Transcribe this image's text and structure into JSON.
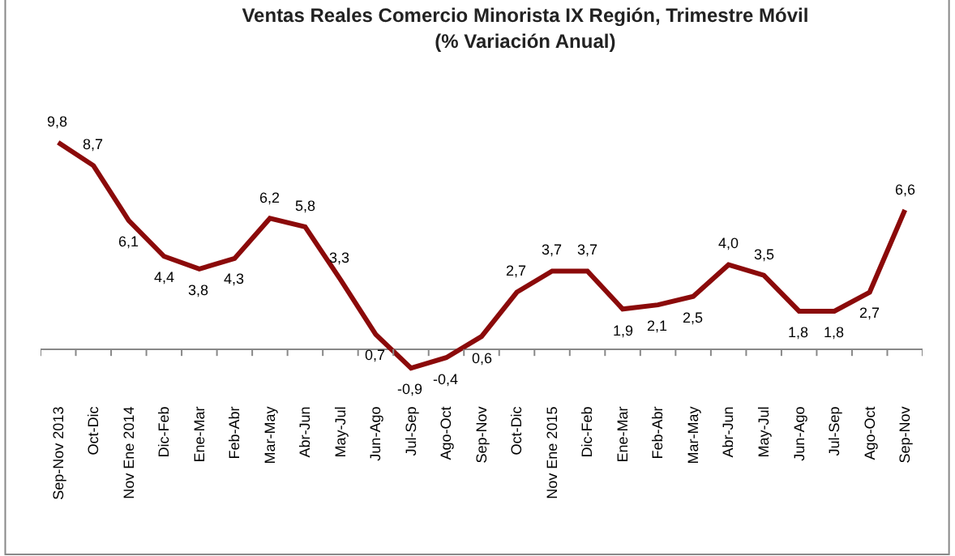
{
  "chart_data": {
    "type": "line",
    "title": "Ventas Reales Comercio Minorista IX Región, Trimestre Móvil",
    "subtitle": "(% Variación Anual)",
    "categories": [
      "Sep-Nov 2013",
      "Oct-Dic",
      "Nov Ene 2014",
      "Dic-Feb",
      "Ene-Mar",
      "Feb-Abr",
      "Mar-May",
      "Abr-Jun",
      "May-Jul",
      "Jun-Ago",
      "Jul-Sep",
      "Ago-Oct",
      "Sep-Nov",
      "Oct-Dic",
      "Nov Ene 2015",
      "Dic-Feb",
      "Ene-Mar",
      "Feb-Abr",
      "Mar-May",
      "Abr-Jun",
      "May-Jul",
      "Jun-Ago",
      "Jul-Sep",
      "Ago-Oct",
      "Sep-Nov"
    ],
    "series": [
      {
        "color": "#8b0a0a",
        "values": [
          9.8,
          8.7,
          6.1,
          4.4,
          3.8,
          4.3,
          6.2,
          5.8,
          3.3,
          0.7,
          -0.9,
          -0.4,
          0.6,
          2.7,
          3.7,
          3.7,
          1.9,
          2.1,
          2.5,
          4.0,
          3.5,
          1.8,
          1.8,
          2.7,
          6.6
        ],
        "value_labels": [
          "9,8",
          "8,7",
          "6,1",
          "4,4",
          "3,8",
          "4,3",
          "6,2",
          "5,8",
          "3,3",
          "0,7",
          "-0,9",
          "-0,4",
          "0,6",
          "2,7",
          "3,7",
          "3,7",
          "1,9",
          "2,1",
          "2,5",
          "4,0",
          "3,5",
          "1,8",
          "1,8",
          "2,7",
          "6,6"
        ]
      }
    ],
    "marker": "none",
    "line_style": "solid"
  }
}
